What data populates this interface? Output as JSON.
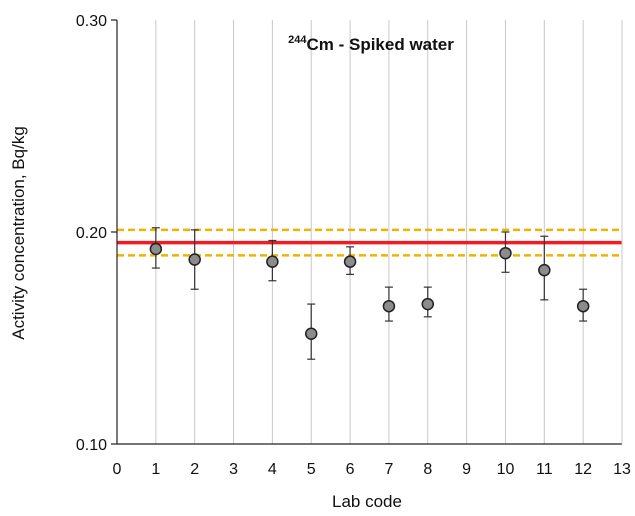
{
  "chart_data": {
    "type": "scatter",
    "title": {
      "superscript": "244",
      "text": "Cm - Spiked water"
    },
    "xlabel": "Lab code",
    "ylabel": "Activity concentration, Bq/kg",
    "xlim": [
      0,
      13
    ],
    "ylim": [
      0.1,
      0.3
    ],
    "x_ticks": [
      "0",
      "1",
      "2",
      "3",
      "4",
      "5",
      "6",
      "7",
      "8",
      "9",
      "10",
      "11",
      "12",
      "13"
    ],
    "y_ticks": [
      "0.10",
      "0.20",
      "0.30"
    ],
    "grid": "vertical",
    "reference_value": 0.195,
    "reference_band": [
      0.189,
      0.201
    ],
    "points": [
      {
        "x": 1,
        "y": 0.192,
        "err_low": 0.183,
        "err_high": 0.202
      },
      {
        "x": 2,
        "y": 0.187,
        "err_low": 0.173,
        "err_high": 0.201
      },
      {
        "x": 4,
        "y": 0.186,
        "err_low": 0.177,
        "err_high": 0.196
      },
      {
        "x": 5,
        "y": 0.152,
        "err_low": 0.14,
        "err_high": 0.166
      },
      {
        "x": 6,
        "y": 0.186,
        "err_low": 0.18,
        "err_high": 0.193
      },
      {
        "x": 7,
        "y": 0.165,
        "err_low": 0.158,
        "err_high": 0.174
      },
      {
        "x": 8,
        "y": 0.166,
        "err_low": 0.16,
        "err_high": 0.174
      },
      {
        "x": 10,
        "y": 0.19,
        "err_low": 0.181,
        "err_high": 0.2
      },
      {
        "x": 11,
        "y": 0.182,
        "err_low": 0.168,
        "err_high": 0.198
      },
      {
        "x": 12,
        "y": 0.165,
        "err_low": 0.158,
        "err_high": 0.173
      }
    ],
    "colors": {
      "reference_line": "#ee1c25",
      "band_line": "#f0b400",
      "marker_fill": "#8c8c8c",
      "marker_stroke": "#222222",
      "grid": "#c8c8c8",
      "axis": "#222222"
    }
  }
}
